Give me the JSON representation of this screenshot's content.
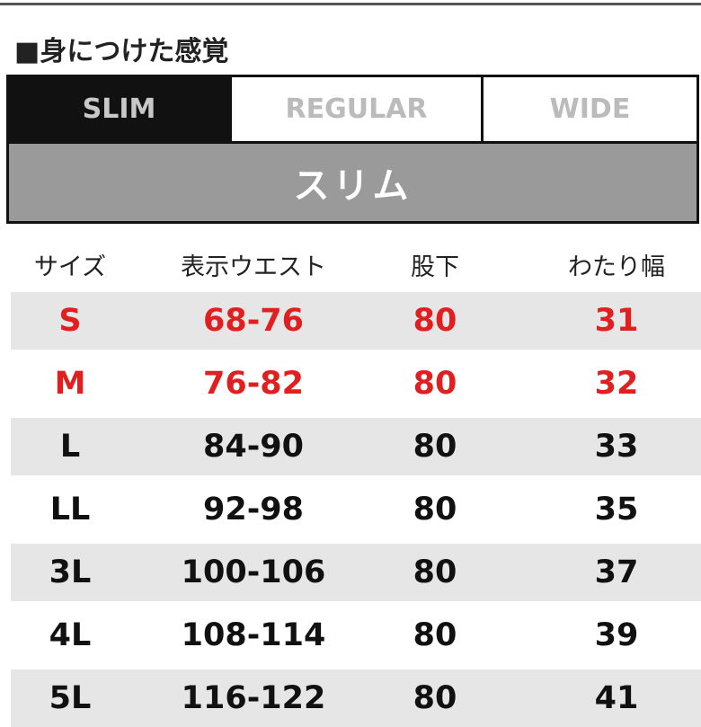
{
  "header": {
    "title": "■身につけた感覚"
  },
  "tabs": [
    "SLIM",
    "REGULAR",
    "WIDE"
  ],
  "banner": "スリム",
  "table": {
    "columns": [
      "サイズ",
      "表示ウエスト",
      "股下",
      "わたり幅"
    ],
    "rows": [
      [
        "S",
        "68-76",
        "80",
        "31"
      ],
      [
        "M",
        "76-82",
        "80",
        "32"
      ],
      [
        "L",
        "84-90",
        "80",
        "33"
      ],
      [
        "LL",
        "92-98",
        "80",
        "35"
      ],
      [
        "3L",
        "100-106",
        "80",
        "37"
      ],
      [
        "4L",
        "108-114",
        "80",
        "39"
      ],
      [
        "5L",
        "116-122",
        "80",
        "41"
      ]
    ]
  }
}
